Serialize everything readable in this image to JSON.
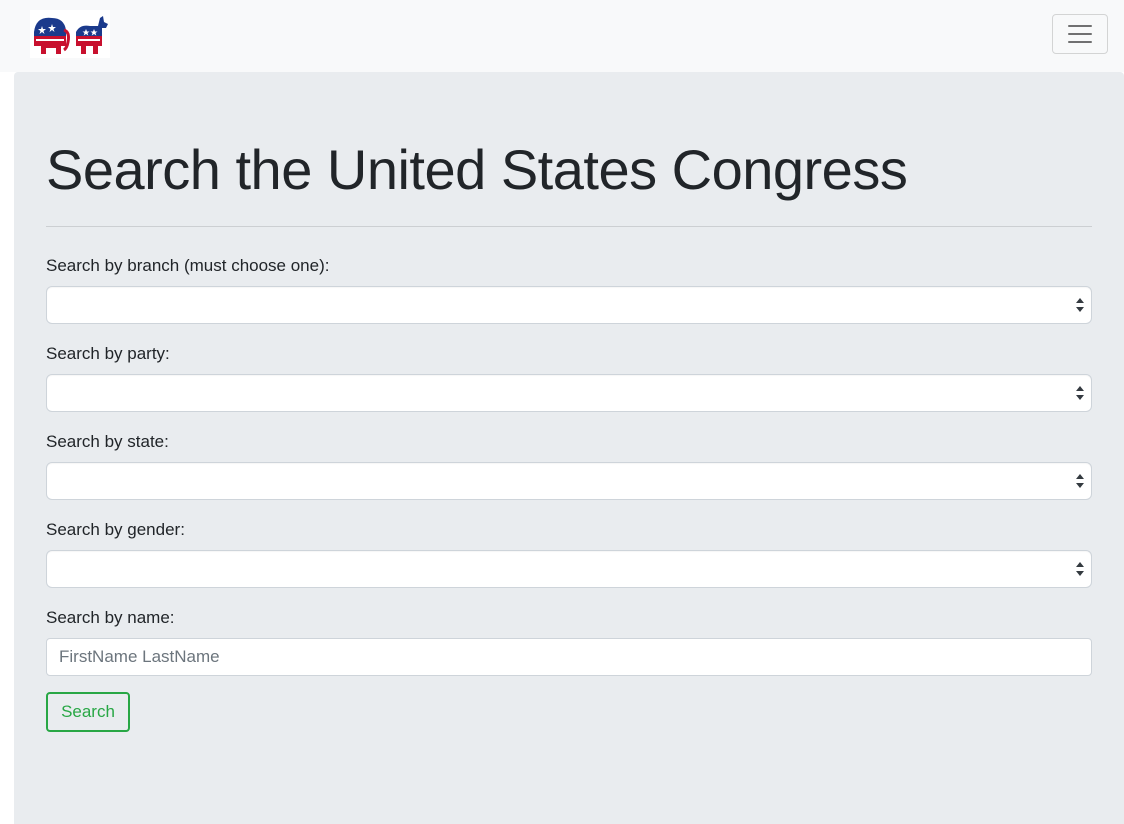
{
  "navbar": {
    "logo_name": "democratic-republican-logo",
    "toggler_icon": "hamburger-menu-icon"
  },
  "page": {
    "title": "Search the United States Congress"
  },
  "form": {
    "branch": {
      "label": "Search by branch (must choose one):",
      "value": ""
    },
    "party": {
      "label": "Search by party:",
      "value": ""
    },
    "state": {
      "label": "Search by state:",
      "value": ""
    },
    "gender": {
      "label": "Search by gender:",
      "value": ""
    },
    "name": {
      "label": "Search by name:",
      "value": "",
      "placeholder": "FirstName LastName"
    },
    "submit_label": "Search"
  },
  "colors": {
    "navbar_bg": "#f8f9fa",
    "jumbotron_bg": "#e9ecef",
    "success": "#28a745"
  }
}
